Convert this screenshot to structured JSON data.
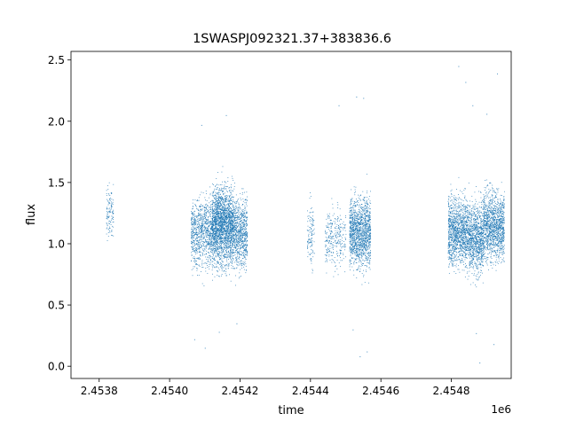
{
  "chart_data": {
    "type": "scatter",
    "title": "1SWASPJ092321.37+383836.6",
    "xlabel": "time",
    "ylabel": "flux",
    "x_offset_label": "1e6",
    "xlim": [
      2.45372,
      2.45497
    ],
    "ylim": [
      -0.1,
      2.57
    ],
    "x_ticks": [
      2.4538,
      2.454,
      2.4542,
      2.4544,
      2.4546,
      2.4548
    ],
    "x_tick_labels": [
      "2.4538",
      "2.4540",
      "2.4542",
      "2.4544",
      "2.4546",
      "2.4548"
    ],
    "y_ticks": [
      0.0,
      0.5,
      1.0,
      1.5,
      2.0,
      2.5
    ],
    "y_tick_labels": [
      "0.0",
      "0.5",
      "1.0",
      "1.5",
      "2.0",
      "2.5"
    ],
    "grid": false,
    "legend": "none",
    "marker_color": "#1f77b4",
    "series": [
      {
        "segments": [
          {
            "x_start": 2.45382,
            "x_end": 2.45384,
            "y_center": 1.25,
            "y_spread": 0.35,
            "density": "sparse",
            "approx_points": 120
          },
          {
            "x_start": 2.45406,
            "x_end": 2.45412,
            "y_center": 1.1,
            "y_spread": 0.45,
            "density": "medium",
            "approx_points": 900
          },
          {
            "x_start": 2.45412,
            "x_end": 2.45418,
            "y_center": 1.15,
            "y_spread": 0.5,
            "density": "dense",
            "approx_points": 2200
          },
          {
            "x_start": 2.45418,
            "x_end": 2.45422,
            "y_center": 1.1,
            "y_spread": 0.45,
            "density": "medium",
            "approx_points": 800
          },
          {
            "x_start": 2.45439,
            "x_end": 2.45441,
            "y_center": 1.05,
            "y_spread": 0.4,
            "density": "sparse",
            "approx_points": 120
          },
          {
            "x_start": 2.45444,
            "x_end": 2.4545,
            "y_center": 1.05,
            "y_spread": 0.4,
            "density": "sparse",
            "approx_points": 300
          },
          {
            "x_start": 2.45451,
            "x_end": 2.45457,
            "y_center": 1.1,
            "y_spread": 0.45,
            "density": "dense",
            "approx_points": 1400
          },
          {
            "x_start": 2.45479,
            "x_end": 2.45485,
            "y_center": 1.1,
            "y_spread": 0.45,
            "density": "dense",
            "approx_points": 1300
          },
          {
            "x_start": 2.45485,
            "x_end": 2.45489,
            "y_center": 1.05,
            "y_spread": 0.45,
            "density": "medium",
            "approx_points": 900
          },
          {
            "x_start": 2.45489,
            "x_end": 2.45495,
            "y_center": 1.15,
            "y_spread": 0.45,
            "density": "dense",
            "approx_points": 1300
          }
        ],
        "outliers": [
          {
            "x": 2.45407,
            "y": 0.22
          },
          {
            "x": 2.4541,
            "y": 0.15
          },
          {
            "x": 2.45414,
            "y": 0.28
          },
          {
            "x": 2.45419,
            "y": 0.35
          },
          {
            "x": 2.45409,
            "y": 1.97
          },
          {
            "x": 2.45416,
            "y": 2.05
          },
          {
            "x": 2.45453,
            "y": 2.2
          },
          {
            "x": 2.45455,
            "y": 2.19
          },
          {
            "x": 2.45454,
            "y": 0.08
          },
          {
            "x": 2.45456,
            "y": 0.12
          },
          {
            "x": 2.45452,
            "y": 0.3
          },
          {
            "x": 2.45448,
            "y": 2.13
          },
          {
            "x": 2.45482,
            "y": 2.45
          },
          {
            "x": 2.45484,
            "y": 2.32
          },
          {
            "x": 2.45487,
            "y": 0.27
          },
          {
            "x": 2.45488,
            "y": 0.03
          },
          {
            "x": 2.45492,
            "y": 0.18
          },
          {
            "x": 2.45493,
            "y": 2.39
          },
          {
            "x": 2.45486,
            "y": 2.13
          },
          {
            "x": 2.4549,
            "y": 2.06
          }
        ]
      }
    ]
  }
}
